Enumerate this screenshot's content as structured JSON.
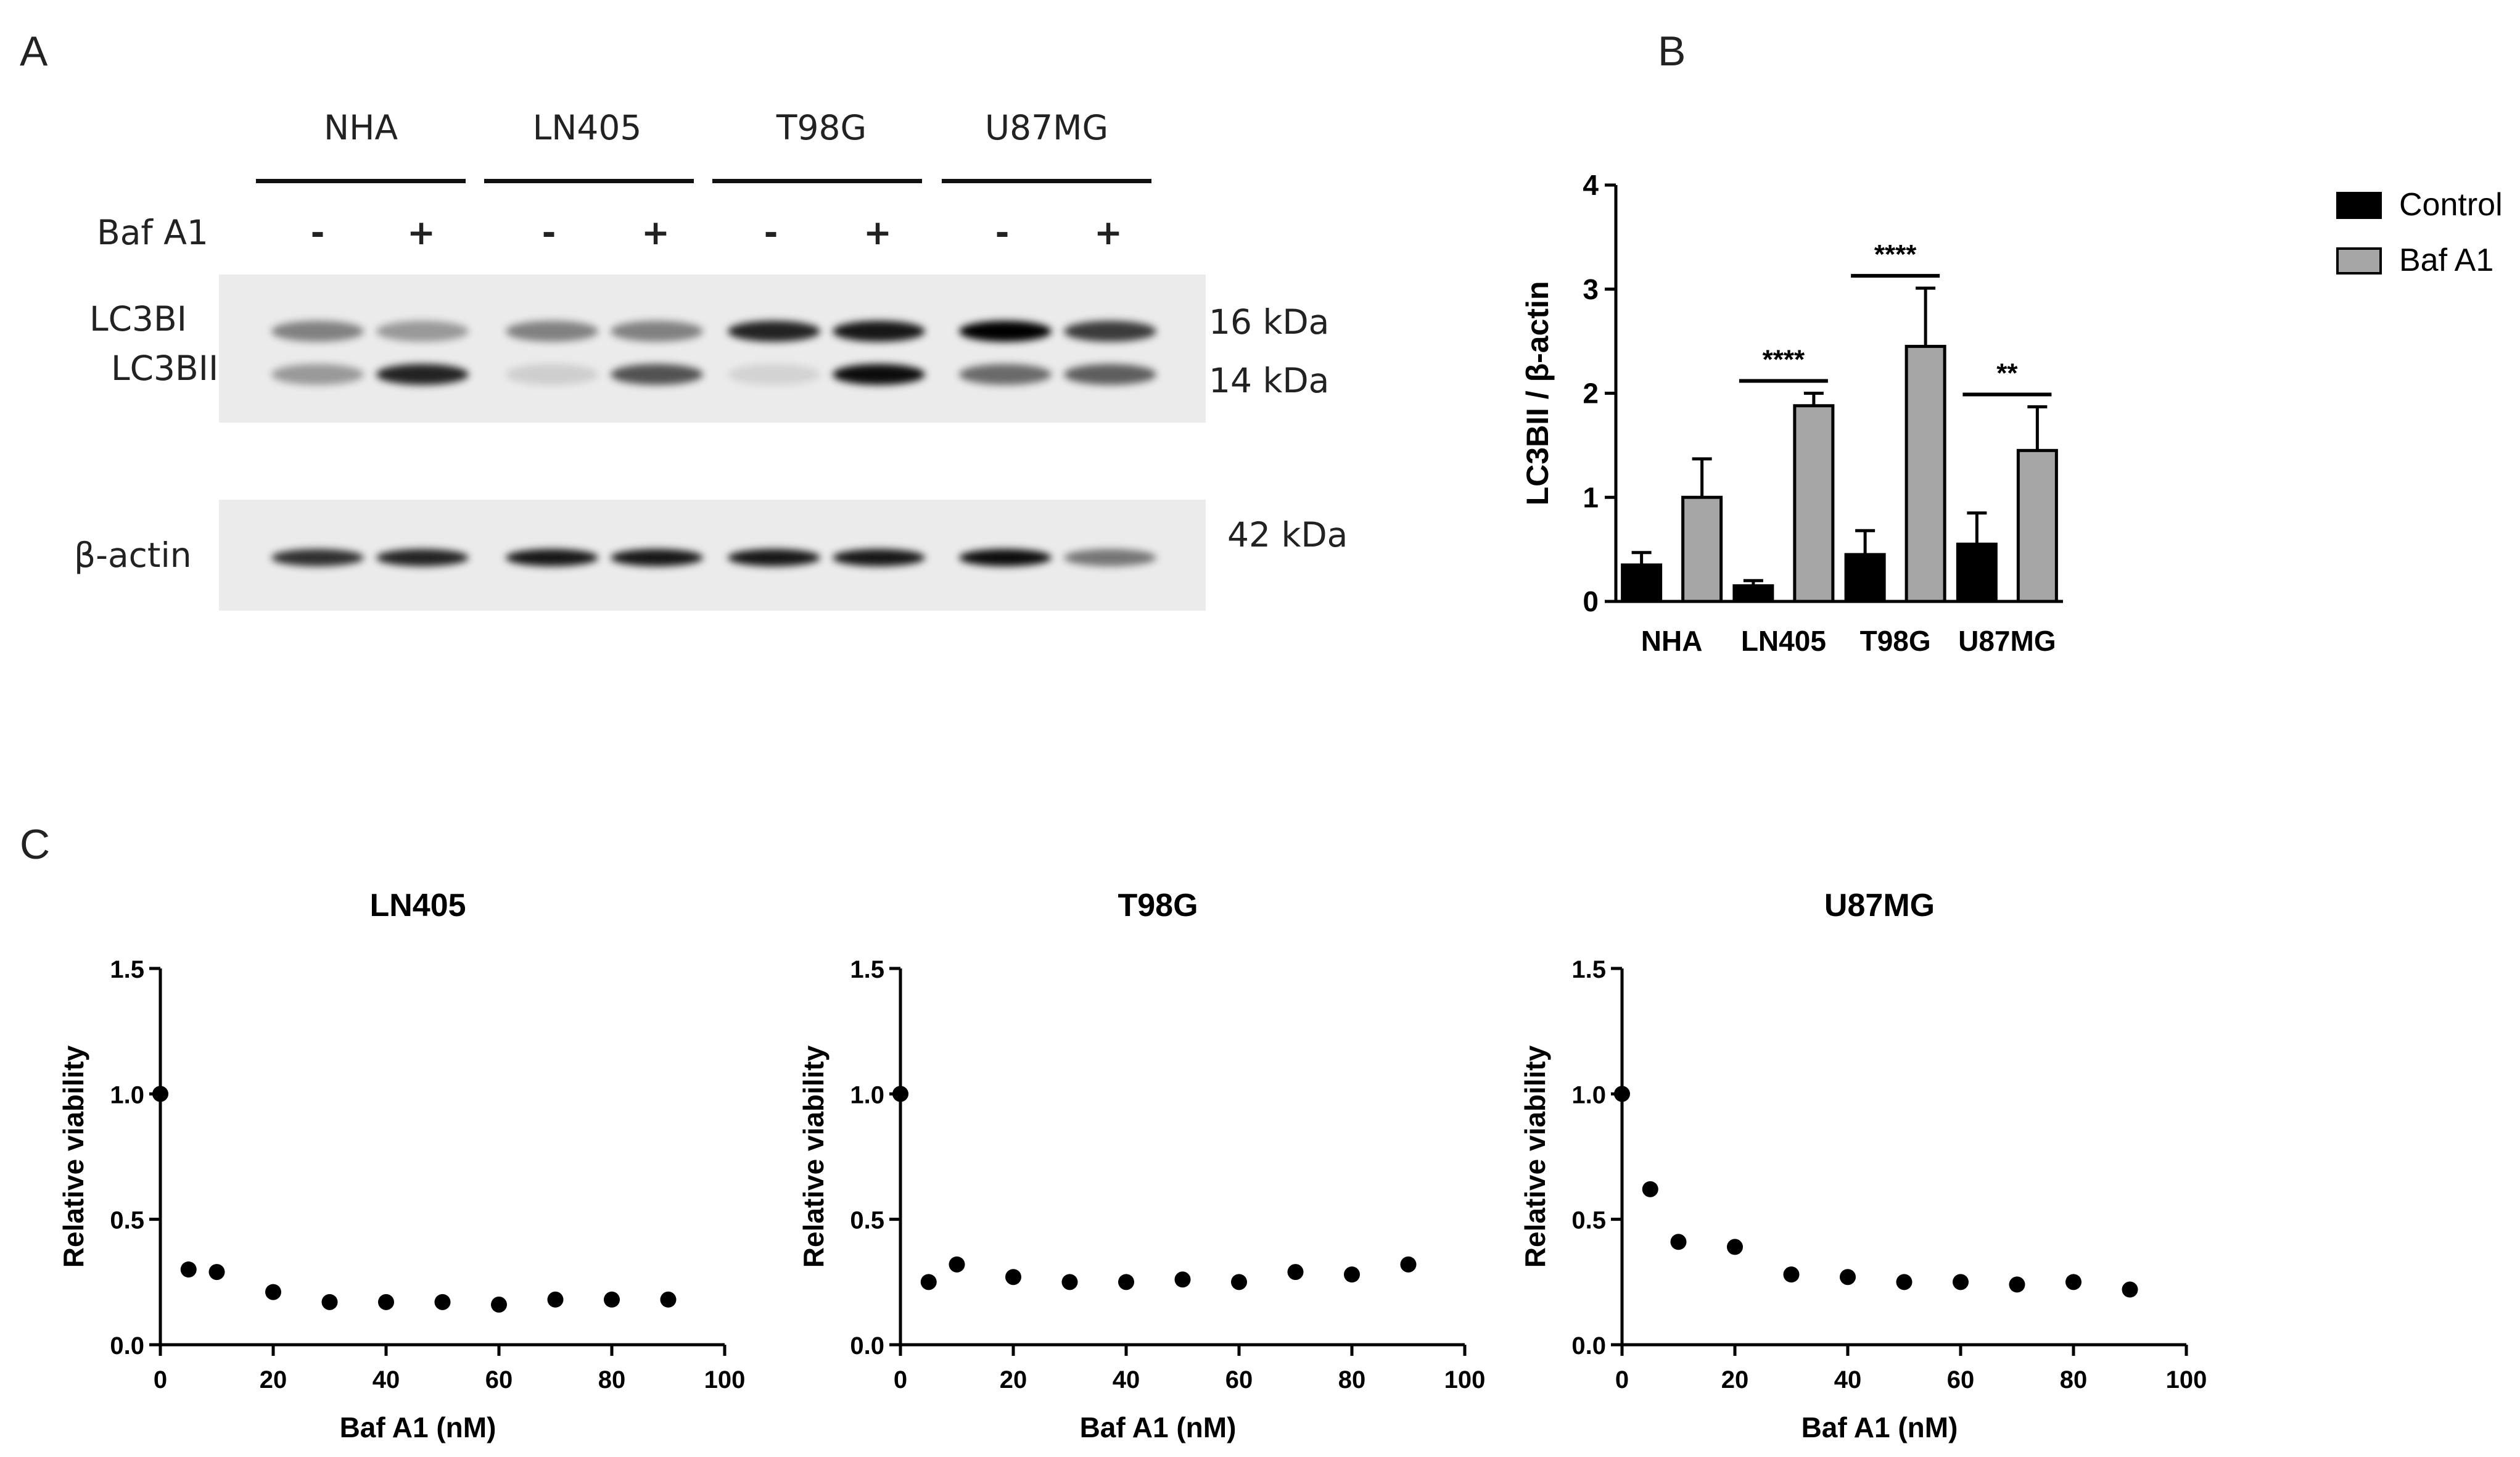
{
  "panels": {
    "A": "A",
    "B": "B",
    "C": "C"
  },
  "western_blot": {
    "cell_lines": [
      "NHA",
      "LN405",
      "T98G",
      "U87MG"
    ],
    "treatment_label": "Baf A1",
    "treatment_signs": [
      "-",
      "+",
      "-",
      "+",
      "-",
      "+",
      "-",
      "+"
    ],
    "bands": {
      "lc3bi": "LC3BI",
      "lc3bii": "LC3BII",
      "actin": "β-actin"
    },
    "sizes": {
      "lc3bi": "16 kDa",
      "lc3bii": "14 kDa",
      "actin": "42 kDa"
    },
    "lc3bi_intensity": [
      0.45,
      0.35,
      0.45,
      0.45,
      0.85,
      0.9,
      1.0,
      0.75
    ],
    "lc3bii_intensity": [
      0.35,
      0.85,
      0.12,
      0.65,
      0.1,
      0.95,
      0.55,
      0.6
    ],
    "actin_intensity": [
      0.8,
      0.85,
      0.9,
      0.9,
      0.9,
      0.9,
      0.95,
      0.5
    ]
  },
  "chart_data": [
    {
      "type": "bar",
      "panel": "B",
      "categories": [
        "NHA",
        "LN405",
        "T98G",
        "U87MG"
      ],
      "series": [
        {
          "name": "Control",
          "color": "#000000",
          "values": [
            0.35,
            0.15,
            0.45,
            0.55
          ],
          "errors": [
            0.12,
            0.05,
            0.23,
            0.3
          ]
        },
        {
          "name": "Baf A1",
          "color": "#a6a6a6",
          "values": [
            1.0,
            1.88,
            2.45,
            1.45
          ],
          "errors": [
            0.37,
            0.12,
            0.56,
            0.42
          ]
        }
      ],
      "significance": [
        {
          "category": "LN405",
          "label": "****"
        },
        {
          "category": "T98G",
          "label": "****"
        },
        {
          "category": "U87MG",
          "label": "**"
        }
      ],
      "ylabel": "LC3BII / β-actin",
      "ylim": [
        0,
        4
      ],
      "yticks": [
        "0",
        "1",
        "2",
        "3",
        "4"
      ],
      "legend_position": "top-right"
    },
    {
      "type": "scatter",
      "panel": "C",
      "title": "LN405",
      "xlabel": "Baf A1 (nM)",
      "ylabel": "Relative viability",
      "xlim": [
        0,
        100
      ],
      "ylim": [
        0,
        1.5
      ],
      "xticks": [
        "0",
        "20",
        "40",
        "60",
        "80",
        "100"
      ],
      "yticks": [
        "0.0",
        "0.5",
        "1.0",
        "1.5"
      ],
      "x": [
        0,
        5,
        10,
        20,
        30,
        40,
        50,
        60,
        70,
        80,
        90
      ],
      "y": [
        1.0,
        0.3,
        0.29,
        0.21,
        0.17,
        0.17,
        0.17,
        0.16,
        0.18,
        0.18,
        0.18
      ]
    },
    {
      "type": "scatter",
      "panel": "C",
      "title": "T98G",
      "xlabel": "Baf A1 (nM)",
      "ylabel": "Relative viability",
      "xlim": [
        0,
        100
      ],
      "ylim": [
        0,
        1.5
      ],
      "xticks": [
        "0",
        "20",
        "40",
        "60",
        "80",
        "100"
      ],
      "yticks": [
        "0.0",
        "0.5",
        "1.0",
        "1.5"
      ],
      "x": [
        0,
        5,
        10,
        20,
        30,
        40,
        50,
        60,
        70,
        80,
        90
      ],
      "y": [
        1.0,
        0.25,
        0.32,
        0.27,
        0.25,
        0.25,
        0.26,
        0.25,
        0.29,
        0.28,
        0.32
      ]
    },
    {
      "type": "scatter",
      "panel": "C",
      "title": "U87MG",
      "xlabel": "Baf A1 (nM)",
      "ylabel": "Relative viability",
      "xlim": [
        0,
        100
      ],
      "ylim": [
        0,
        1.5
      ],
      "xticks": [
        "0",
        "20",
        "40",
        "60",
        "80",
        "100"
      ],
      "yticks": [
        "0.0",
        "0.5",
        "1.0",
        "1.5"
      ],
      "x": [
        0,
        5,
        10,
        20,
        30,
        40,
        50,
        60,
        70,
        80,
        90
      ],
      "y": [
        1.0,
        0.62,
        0.41,
        0.39,
        0.28,
        0.27,
        0.25,
        0.25,
        0.24,
        0.25,
        0.22
      ]
    }
  ]
}
